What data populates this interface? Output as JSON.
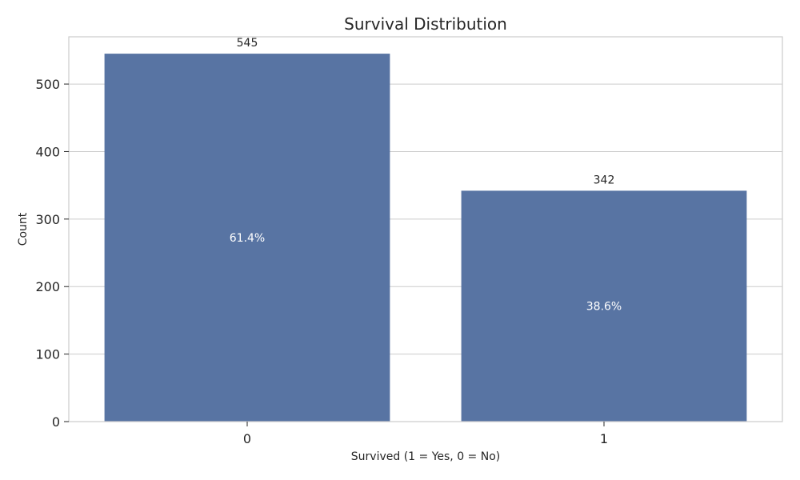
{
  "chart_data": {
    "type": "bar",
    "title": "Survival Distribution",
    "xlabel": "Survived (1 = Yes, 0 = No)",
    "ylabel": "Count",
    "categories": [
      "0",
      "1"
    ],
    "values": [
      545,
      342
    ],
    "value_labels": [
      "545",
      "342"
    ],
    "percent_labels": [
      "61.4%",
      "38.6%"
    ],
    "ylim": [
      0,
      570
    ],
    "yticks": [
      0,
      100,
      200,
      300,
      400,
      500
    ],
    "ytick_labels": [
      "0",
      "100",
      "200",
      "300",
      "400",
      "500"
    ],
    "grid": true,
    "bar_color": "#5874a3"
  }
}
